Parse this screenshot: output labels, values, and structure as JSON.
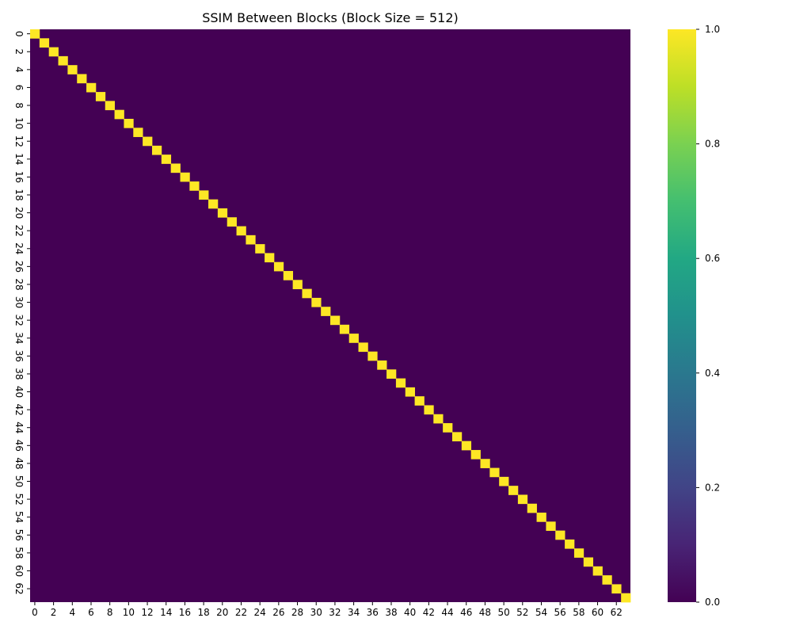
{
  "chart_data": {
    "type": "heatmap",
    "title": "SSIM Between Blocks (Block Size = 512)",
    "xlabel": "",
    "ylabel": "",
    "n": 64,
    "diagonal_value": 1.0,
    "off_diagonal_value": 0.0,
    "x_tick_labels": [
      "0",
      "2",
      "4",
      "6",
      "8",
      "10",
      "12",
      "14",
      "16",
      "18",
      "20",
      "22",
      "24",
      "26",
      "28",
      "30",
      "32",
      "34",
      "36",
      "38",
      "40",
      "42",
      "44",
      "46",
      "48",
      "50",
      "52",
      "54",
      "56",
      "58",
      "60",
      "62"
    ],
    "y_tick_labels": [
      "0",
      "2",
      "4",
      "6",
      "8",
      "10",
      "12",
      "14",
      "16",
      "18",
      "20",
      "22",
      "24",
      "26",
      "28",
      "30",
      "32",
      "34",
      "36",
      "38",
      "40",
      "42",
      "44",
      "46",
      "48",
      "50",
      "52",
      "54",
      "56",
      "58",
      "60",
      "62"
    ],
    "colorbar": {
      "range": [
        0.0,
        1.0
      ],
      "ticks": [
        "0.0",
        "0.2",
        "0.4",
        "0.6",
        "0.8",
        "1.0"
      ],
      "colormap": "viridis"
    },
    "colors": {
      "low": "#440154",
      "high": "#fde725"
    },
    "grid": false
  }
}
